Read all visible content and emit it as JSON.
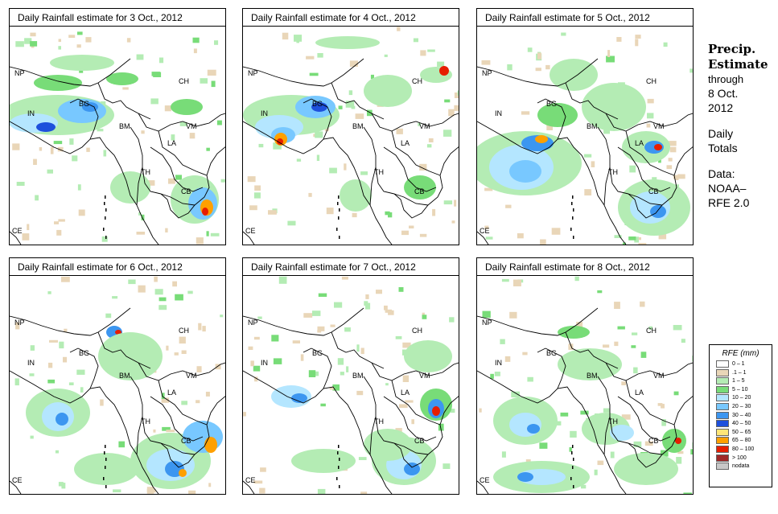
{
  "panels": [
    {
      "title": "Daily Rainfall estimate for  3 Oct., 2012"
    },
    {
      "title": "Daily Rainfall estimate for  4 Oct., 2012"
    },
    {
      "title": "Daily Rainfall estimate for  5 Oct., 2012"
    },
    {
      "title": "Daily Rainfall estimate for  6 Oct., 2012"
    },
    {
      "title": "Daily Rainfall estimate for  7 Oct., 2012"
    },
    {
      "title": "Daily Rainfall estimate for  8 Oct., 2012"
    }
  ],
  "country_labels": {
    "NP": "NP",
    "IN": "IN",
    "BG": "BG",
    "BM": "BM",
    "CH": "CH",
    "VM": "VM",
    "LA": "LA",
    "TH": "TH",
    "CB": "CB",
    "CE": "CE"
  },
  "side": {
    "line1": "Precip.",
    "line2": "Estimate",
    "line3": "through",
    "line4": "8 Oct.",
    "line5": "2012",
    "line6": "Daily",
    "line7": "Totals",
    "line8": "Data:",
    "line9": "NOAA–",
    "line10": "RFE 2.0"
  },
  "legend": {
    "title": "RFE (mm)",
    "items": [
      {
        "label": "0 – 1",
        "color": "#ffffff"
      },
      {
        "label": ".1 – 1",
        "color": "#e9d6b8"
      },
      {
        "label": "1 – 5",
        "color": "#b4ecb4"
      },
      {
        "label": "5 – 10",
        "color": "#78dc78"
      },
      {
        "label": "10 – 20",
        "color": "#b4e6ff"
      },
      {
        "label": "20 – 30",
        "color": "#78c8ff"
      },
      {
        "label": "30 – 40",
        "color": "#3c96f0"
      },
      {
        "label": "40 – 50",
        "color": "#1e50dc"
      },
      {
        "label": "50 – 65",
        "color": "#ffe678"
      },
      {
        "label": "65 – 80",
        "color": "#ffa000"
      },
      {
        "label": "80 – 100",
        "color": "#e61e00"
      },
      {
        "label": "> 100",
        "color": "#a02828"
      },
      {
        "label": "nodata",
        "color": "#c8c8c8"
      }
    ]
  }
}
